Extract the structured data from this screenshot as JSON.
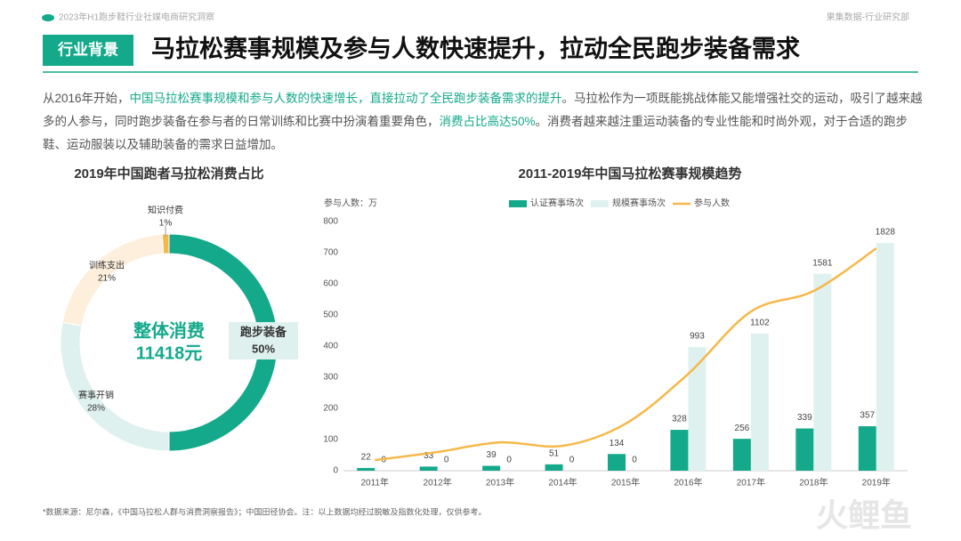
{
  "header": {
    "report": "2023年H1跑步鞋行业社媒电商研究洞察",
    "source": "果集数据-行业研究部",
    "badge": "行业背景",
    "title": "马拉松赛事规模及参与人数快速提升，拉动全民跑步装备需求"
  },
  "paragraph": [
    {
      "text": "从2016年开始，",
      "highlight": false
    },
    {
      "text": "中国马拉松赛事规模和参与人数的快速增长，直接拉动了全民跑步装备需求的提升",
      "highlight": true
    },
    {
      "text": "。马拉松作为一项既能挑战体能又能增强社交的运动，吸引了越来越多的人参与，同时跑步装备在参与者的日常训练和比赛中扮演着重要角色，",
      "highlight": false
    },
    {
      "text": "消费占比高达50%",
      "highlight": true
    },
    {
      "text": "。消费者越来越注重运动装备的专业性能和时尚外观，对于合适的跑步鞋、运动服装以及辅助装备的需求日益增加。",
      "highlight": false
    }
  ],
  "footnote": "*数据来源：尼尔森，《中国马拉松人群与消费洞察报告》；中国田径协会。注：以上数据均经过脱敏及指数化处理，仅供参考。",
  "watermark": "火鲤鱼",
  "chart_data": [
    {
      "type": "donut",
      "title": "2019年中国跑者马拉松消费占比",
      "center_label": "整体消费",
      "center_value": "11418元",
      "categories": [
        "跑步装备",
        "赛事开销",
        "训练支出",
        "知识付费"
      ],
      "values": [
        50,
        28,
        21,
        1
      ],
      "value_labels": [
        "50%",
        "28%",
        "21%",
        "1%"
      ],
      "colors": [
        "#14a98a",
        "#dff1ef",
        "#fdefdb",
        "#f2b84b"
      ]
    },
    {
      "type": "bar-line",
      "title": "2011-2019年中国马拉松赛事规模趋势",
      "ylabel": "参与人数：万",
      "categories": [
        "2011年",
        "2012年",
        "2013年",
        "2014年",
        "2015年",
        "2016年",
        "2017年",
        "2018年",
        "2019年"
      ],
      "ylim": [
        0,
        800
      ],
      "yticks": [
        0,
        100,
        200,
        300,
        400,
        500,
        600,
        700,
        800
      ],
      "y2lim": [
        0,
        2000
      ],
      "series": [
        {
          "name": "认证赛事场次",
          "type": "bar",
          "axis": "y2",
          "color": "#14a98a",
          "values": [
            22,
            33,
            39,
            51,
            134,
            328,
            256,
            339,
            357
          ]
        },
        {
          "name": "规模赛事场次",
          "type": "bar",
          "axis": "y2",
          "color": "#dff1ef",
          "values": [
            0,
            0,
            0,
            0,
            0,
            993,
            1102,
            1581,
            1828
          ]
        },
        {
          "name": "参与人数",
          "type": "line",
          "color": "#f5b84a",
          "values": [
            34,
            60,
            91,
            80,
            151,
            311,
            511,
            577,
            714
          ]
        }
      ]
    }
  ]
}
